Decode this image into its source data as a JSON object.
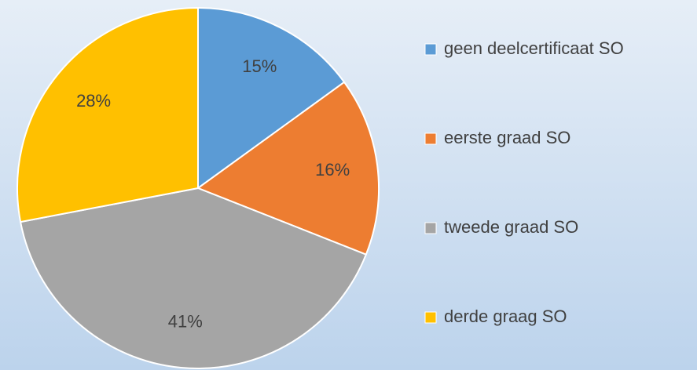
{
  "chart_data": {
    "type": "pie",
    "categories": [
      "geen deelcertificaat SO",
      "eerste graad SO",
      "tweede graad SO",
      "derde graag SO"
    ],
    "values": [
      15,
      16,
      41,
      28
    ],
    "value_labels": [
      "15%",
      "16%",
      "41%",
      "28%"
    ],
    "colors": [
      "#5b9bd5",
      "#ed7d31",
      "#a5a5a5",
      "#ffc000"
    ],
    "legend": "right"
  }
}
